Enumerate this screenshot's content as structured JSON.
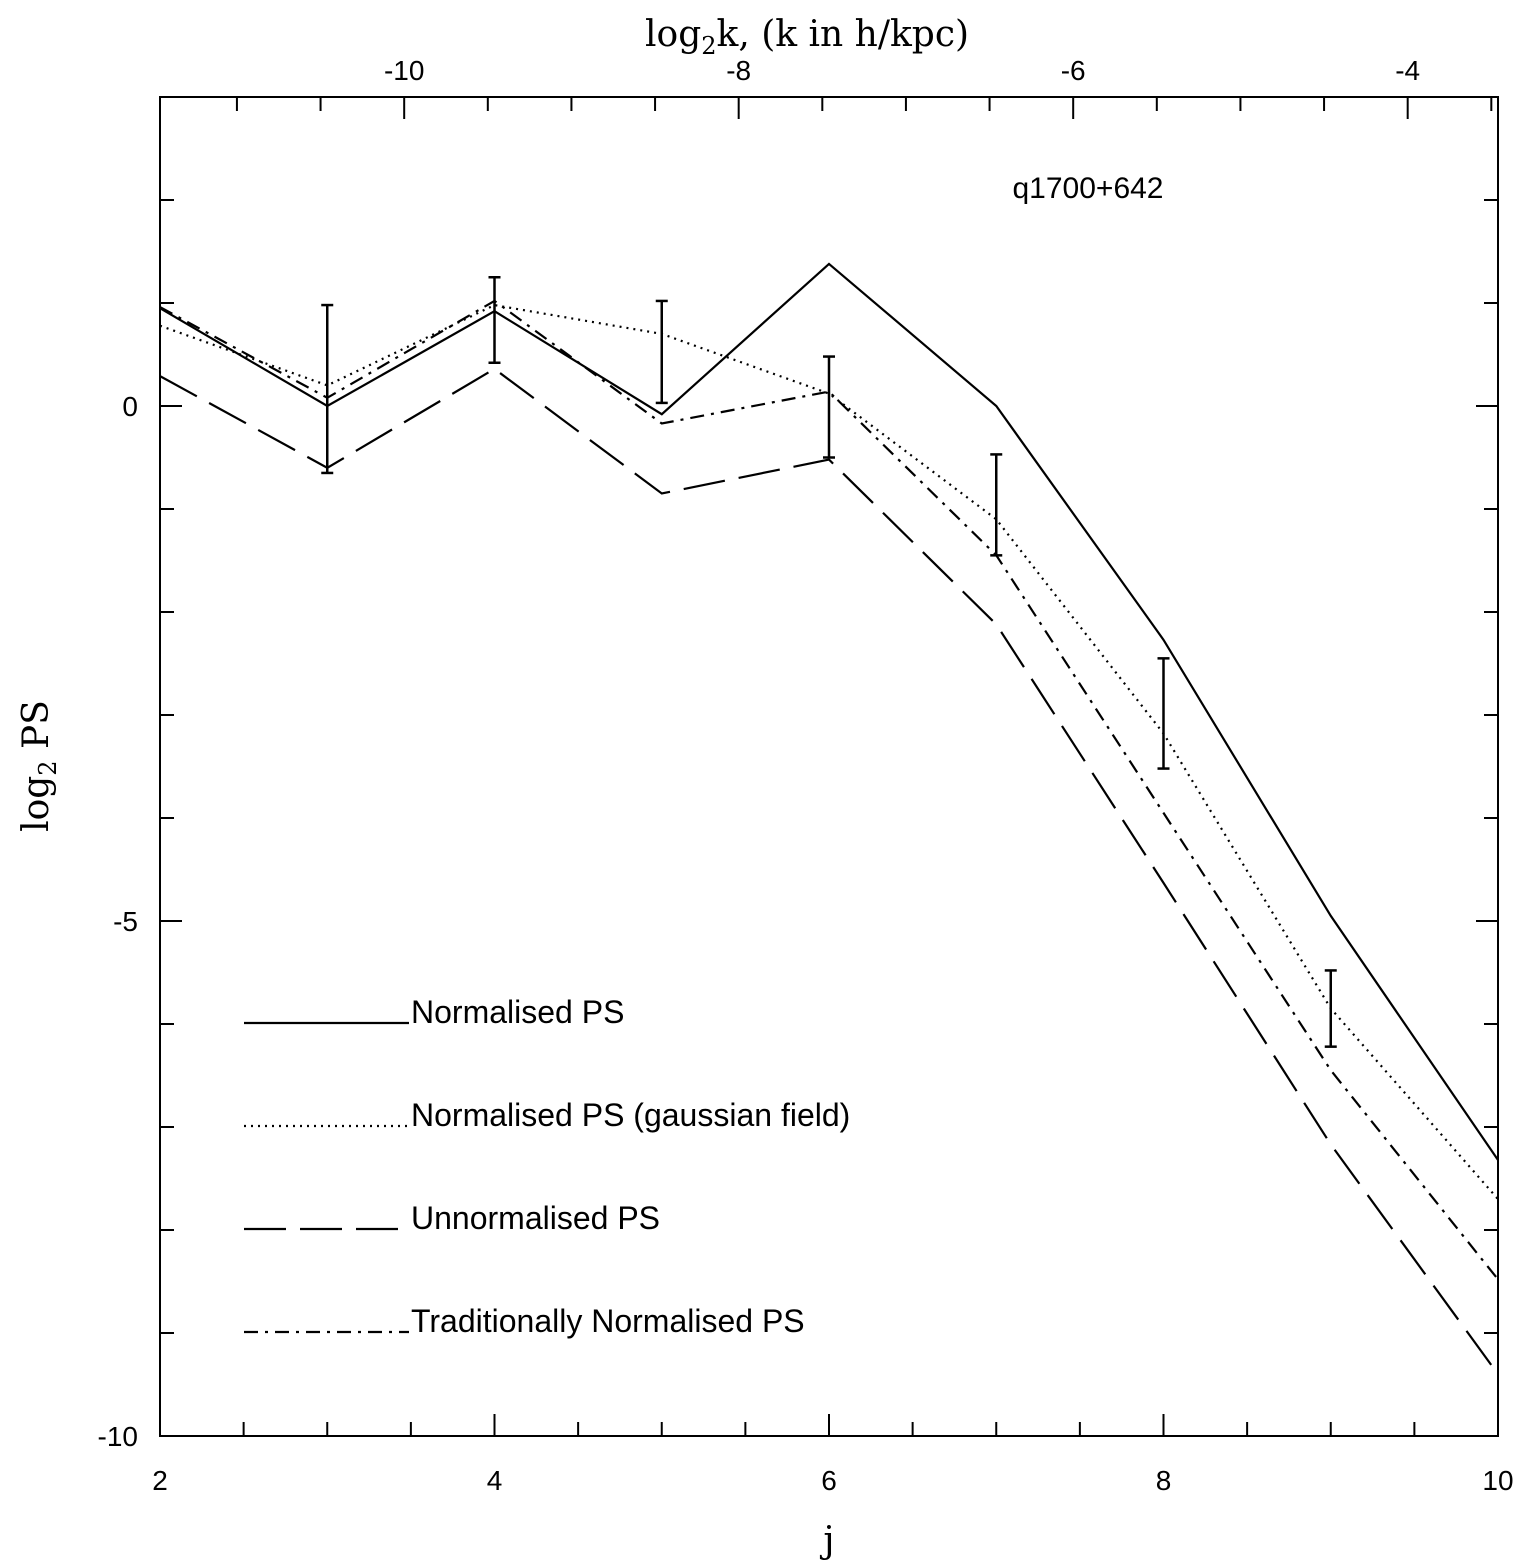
{
  "chart_data": {
    "type": "line",
    "annotation": "q1700+642",
    "xlabel": "j",
    "ylabel_main": "log",
    "ylabel_sub": "2",
    "ylabel_tail": " PS",
    "top_xlabel_main": "log",
    "top_xlabel_sub": "2",
    "top_xlabel_tail": "k,  (k in h/kpc)",
    "xlim": [
      2,
      10
    ],
    "ylim": [
      -10,
      3
    ],
    "x_ticks": [
      2,
      4,
      6,
      8,
      10
    ],
    "x_tick_labels": [
      "2",
      "4",
      "6",
      "8",
      "10"
    ],
    "x_minor_step": 0.5,
    "y_ticks": [
      0,
      -5,
      -10
    ],
    "y_tick_labels": [
      "0",
      "-5",
      "-10"
    ],
    "y_minor_step": 1,
    "top_ticks": [
      -10,
      -8,
      -6,
      -4
    ],
    "top_tick_labels": [
      "-10",
      "-8",
      "-6",
      "-4"
    ],
    "top_minor_step": 0.5,
    "top_axis_offset": -13.46,
    "x": [
      2,
      3,
      4,
      5,
      6,
      7,
      8,
      9,
      10
    ],
    "series": [
      {
        "name": "Normalised PS",
        "style": "solid",
        "values": [
          0.95,
          0.0,
          0.92,
          -0.08,
          1.38,
          0.0,
          -2.27,
          -4.95,
          -7.32
        ]
      },
      {
        "name": "Normalised PS  (gaussian field)",
        "style": "dotted",
        "values": [
          0.78,
          0.2,
          0.98,
          0.7,
          0.12,
          -1.1,
          -3.18,
          -5.85,
          -7.7
        ]
      },
      {
        "name": "Unnormalised PS",
        "style": "dashed",
        "values": [
          0.29,
          -0.6,
          0.36,
          -0.85,
          -0.52,
          -2.12,
          -4.63,
          -7.17,
          -9.4
        ]
      },
      {
        "name": "Traditionally Normalised PS",
        "style": "dashdot",
        "values": [
          0.96,
          0.08,
          1.02,
          -0.17,
          0.14,
          -1.45,
          -3.95,
          -6.45,
          -8.48
        ]
      }
    ],
    "error_bars": [
      {
        "x": 3,
        "low": -0.65,
        "high": 0.98
      },
      {
        "x": 4,
        "low": 0.42,
        "high": 1.25
      },
      {
        "x": 5,
        "low": 0.03,
        "high": 1.02
      },
      {
        "x": 6,
        "low": -0.5,
        "high": 0.48
      },
      {
        "x": 7,
        "low": -1.45,
        "high": -0.47
      },
      {
        "x": 8,
        "low": -3.52,
        "high": -2.45
      },
      {
        "x": 9,
        "low": -6.22,
        "high": -5.48
      }
    ],
    "legend_position": "lower-left"
  }
}
